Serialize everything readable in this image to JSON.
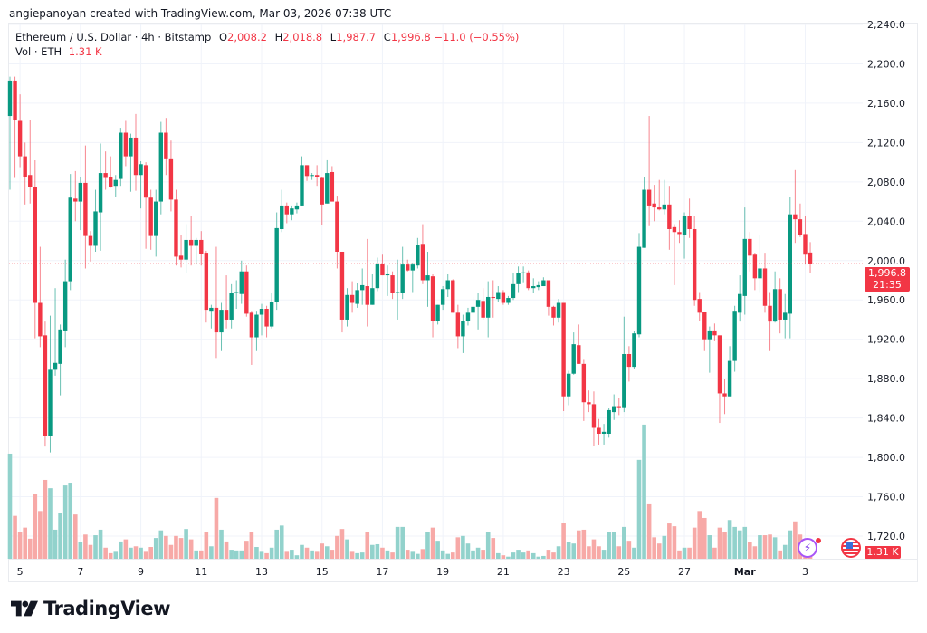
{
  "credit": "angiepanoyan created with TradingView.com, Mar 03, 2026 07:38 UTC",
  "legend": {
    "symbol": "Ethereum / U.S. Dollar · 4h · Bitstamp",
    "o_label": "O",
    "o": "2,008.2",
    "h_label": "H",
    "h": "2,018.8",
    "l_label": "L",
    "l": "1,987.7",
    "c_label": "C",
    "c": "1,996.8",
    "change": "−11.0 (−0.55%)",
    "vol_label": "Vol · ETH",
    "vol": "1.31 K"
  },
  "price_tag": {
    "price": "1,996.8",
    "countdown": "21:35"
  },
  "volume_tag": "1.31 K",
  "brand": "TradingView",
  "colors": {
    "up": "#089981",
    "down": "#F23645",
    "up_vol": "#92d2cc",
    "down_vol": "#f7a9a7",
    "grid": "#f0f3fa"
  },
  "chart_data": {
    "type": "candlestick",
    "title": "Ethereum / U.S. Dollar · 4h · Bitstamp",
    "ylim": [
      1720,
      2240
    ],
    "y_ticks": [
      "2,240.0",
      "2,200.0",
      "2,160.0",
      "2,120.0",
      "2,080.0",
      "2,040.0",
      "2,000.0",
      "1,960.0",
      "1,920.0",
      "1,880.0",
      "1,840.0",
      "1,800.0",
      "1,760.0",
      "1,720.0"
    ],
    "y_tick_values": [
      2240,
      2200,
      2160,
      2120,
      2080,
      2040,
      2000,
      1960,
      1920,
      1880,
      1840,
      1800,
      1760,
      1720
    ],
    "x_ticks": [
      {
        "label": "5",
        "bar": 2
      },
      {
        "label": "7",
        "bar": 14
      },
      {
        "label": "9",
        "bar": 26
      },
      {
        "label": "11",
        "bar": 38
      },
      {
        "label": "13",
        "bar": 50
      },
      {
        "label": "15",
        "bar": 62
      },
      {
        "label": "17",
        "bar": 74
      },
      {
        "label": "19",
        "bar": 86
      },
      {
        "label": "21",
        "bar": 98
      },
      {
        "label": "23",
        "bar": 110
      },
      {
        "label": "25",
        "bar": 122
      },
      {
        "label": "27",
        "bar": 134
      },
      {
        "label": "Mar",
        "bar": 146
      },
      {
        "label": "3",
        "bar": 158
      }
    ],
    "last_price": 1996.8,
    "volume_unit": "K",
    "ohlc": [
      [
        2147,
        2187,
        2072,
        2183
      ],
      [
        2183,
        2187,
        2084,
        2143
      ],
      [
        2142,
        2169,
        2095,
        2106
      ],
      [
        2106,
        2120,
        2057,
        2085
      ],
      [
        2087,
        2143,
        2058,
        2075
      ],
      [
        2075,
        2102,
        1921,
        1957
      ],
      [
        1957,
        2014,
        1912,
        1923
      ],
      [
        1924,
        1938,
        1811,
        1822
      ],
      [
        1822,
        1944,
        1805,
        1889
      ],
      [
        1889,
        1972,
        1883,
        1896
      ],
      [
        1895,
        1935,
        1863,
        1930
      ],
      [
        1929,
        2001,
        1912,
        1979
      ],
      [
        1979,
        2088,
        1970,
        2064
      ],
      [
        2063,
        2091,
        2040,
        2060
      ],
      [
        2060,
        2085,
        2031,
        2079
      ],
      [
        2079,
        2117,
        1992,
        2025
      ],
      [
        2025,
        2030,
        1999,
        2015
      ],
      [
        2015,
        2072,
        2009,
        2050
      ],
      [
        2049,
        2119,
        2010,
        2089
      ],
      [
        2089,
        2111,
        2072,
        2084
      ],
      [
        2085,
        2106,
        2074,
        2075
      ],
      [
        2076,
        2087,
        2065,
        2082
      ],
      [
        2083,
        2135,
        2076,
        2130
      ],
      [
        2130,
        2142,
        2096,
        2106
      ],
      [
        2106,
        2129,
        2070,
        2125
      ],
      [
        2125,
        2149,
        2071,
        2087
      ],
      [
        2087,
        2101,
        2053,
        2098
      ],
      [
        2097,
        2100,
        2012,
        2064
      ],
      [
        2064,
        2072,
        2011,
        2025
      ],
      [
        2025,
        2072,
        2004,
        2060
      ],
      [
        2060,
        2141,
        2047,
        2130
      ],
      [
        2130,
        2145,
        2087,
        2103
      ],
      [
        2103,
        2122,
        2050,
        2062
      ],
      [
        2062,
        2072,
        1995,
        2004
      ],
      [
        2005,
        2026,
        1993,
        2001
      ],
      [
        2001,
        2037,
        1987,
        2021
      ],
      [
        2021,
        2045,
        1995,
        2015
      ],
      [
        2015,
        2023,
        1996,
        2021
      ],
      [
        2021,
        2030,
        1995,
        2007
      ],
      [
        2008,
        2010,
        1937,
        1950
      ],
      [
        1949,
        1955,
        1931,
        1952
      ],
      [
        1952,
        2014,
        1901,
        1927
      ],
      [
        1927,
        1957,
        1908,
        1950
      ],
      [
        1950,
        1985,
        1931,
        1940
      ],
      [
        1940,
        1976,
        1931,
        1967
      ],
      [
        1967,
        1980,
        1951,
        1968
      ],
      [
        1966,
        2000,
        1956,
        1989
      ],
      [
        1989,
        1995,
        1943,
        1946
      ],
      [
        1947,
        1949,
        1894,
        1922
      ],
      [
        1922,
        1949,
        1908,
        1945
      ],
      [
        1945,
        1956,
        1924,
        1951
      ],
      [
        1951,
        1954,
        1922,
        1933
      ],
      [
        1933,
        1967,
        1931,
        1958
      ],
      [
        1958,
        2049,
        1950,
        2033
      ],
      [
        2032,
        2072,
        2029,
        2056
      ],
      [
        2056,
        2059,
        2038,
        2047
      ],
      [
        2047,
        2056,
        2041,
        2053
      ],
      [
        2052,
        2059,
        2048,
        2056
      ],
      [
        2056,
        2106,
        2056,
        2097
      ],
      [
        2097,
        2097,
        2081,
        2086
      ],
      [
        2086,
        2089,
        2082,
        2087
      ],
      [
        2087,
        2097,
        2076,
        2085
      ],
      [
        2084,
        2085,
        2036,
        2057
      ],
      [
        2058,
        2102,
        2058,
        2089
      ],
      [
        2090,
        2096,
        2060,
        2060
      ],
      [
        2060,
        2066,
        1992,
        2009
      ],
      [
        2009,
        2009,
        1927,
        1940
      ],
      [
        1940,
        1972,
        1933,
        1965
      ],
      [
        1965,
        1979,
        1947,
        1957
      ],
      [
        1956,
        1977,
        1952,
        1970
      ],
      [
        1970,
        1992,
        1955,
        1975
      ],
      [
        1974,
        2022,
        1933,
        1955
      ],
      [
        1955,
        1986,
        1955,
        1972
      ],
      [
        1972,
        2003,
        1969,
        1997
      ],
      [
        1997,
        2006,
        1985,
        1985
      ],
      [
        1985,
        1995,
        1964,
        1986
      ],
      [
        1985,
        1989,
        1961,
        1967
      ],
      [
        1967,
        2001,
        1940,
        1968
      ],
      [
        1967,
        2014,
        1961,
        1996
      ],
      [
        1996,
        2001,
        1989,
        1990
      ],
      [
        1990,
        1998,
        1968,
        1996
      ],
      [
        1995,
        2023,
        1992,
        2016
      ],
      [
        2017,
        2037,
        1976,
        1980
      ],
      [
        1980,
        2009,
        1953,
        1985
      ],
      [
        1984,
        1986,
        1922,
        1939
      ],
      [
        1939,
        1955,
        1935,
        1955
      ],
      [
        1955,
        1974,
        1950,
        1971
      ],
      [
        1971,
        1986,
        1963,
        1980
      ],
      [
        1980,
        1981,
        1947,
        1947
      ],
      [
        1947,
        1955,
        1911,
        1923
      ],
      [
        1923,
        1945,
        1906,
        1939
      ],
      [
        1939,
        1952,
        1934,
        1947
      ],
      [
        1947,
        1963,
        1946,
        1953
      ],
      [
        1953,
        1967,
        1930,
        1960
      ],
      [
        1959,
        1972,
        1940,
        1942
      ],
      [
        1942,
        1979,
        1922,
        1963
      ],
      [
        1963,
        1980,
        1942,
        1962
      ],
      [
        1961,
        1974,
        1958,
        1968
      ],
      [
        1968,
        1970,
        1955,
        1957
      ],
      [
        1957,
        1964,
        1955,
        1962
      ],
      [
        1962,
        1987,
        1960,
        1976
      ],
      [
        1976,
        1994,
        1968,
        1987
      ],
      [
        1987,
        1994,
        1978,
        1988
      ],
      [
        1988,
        1990,
        1970,
        1972
      ],
      [
        1972,
        1982,
        1967,
        1974
      ],
      [
        1973,
        1979,
        1970,
        1975
      ],
      [
        1974,
        1983,
        1974,
        1980
      ],
      [
        1980,
        1980,
        1944,
        1953
      ],
      [
        1953,
        1954,
        1934,
        1942
      ],
      [
        1942,
        1961,
        1937,
        1957
      ],
      [
        1957,
        1957,
        1847,
        1862
      ],
      [
        1862,
        1888,
        1853,
        1885
      ],
      [
        1885,
        1927,
        1884,
        1915
      ],
      [
        1914,
        1935,
        1895,
        1895
      ],
      [
        1895,
        1900,
        1837,
        1856
      ],
      [
        1856,
        1868,
        1846,
        1854
      ],
      [
        1854,
        1867,
        1812,
        1830
      ],
      [
        1830,
        1839,
        1813,
        1824
      ],
      [
        1824,
        1834,
        1813,
        1826
      ],
      [
        1824,
        1850,
        1820,
        1848
      ],
      [
        1846,
        1864,
        1838,
        1852
      ],
      [
        1852,
        1860,
        1843,
        1851
      ],
      [
        1851,
        1943,
        1846,
        1905
      ],
      [
        1905,
        1913,
        1877,
        1892
      ],
      [
        1892,
        1928,
        1890,
        1926
      ],
      [
        1925,
        2028,
        1922,
        2014
      ],
      [
        2013,
        2085,
        2013,
        2072
      ],
      [
        2072,
        2147,
        2035,
        2056
      ],
      [
        2058,
        2077,
        2040,
        2054
      ],
      [
        2054,
        2082,
        2051,
        2052
      ],
      [
        2052,
        2082,
        2047,
        2057
      ],
      [
        2057,
        2076,
        2011,
        2032
      ],
      [
        2034,
        2037,
        1975,
        2029
      ],
      [
        2029,
        2041,
        2018,
        2027
      ],
      [
        2026,
        2049,
        2002,
        2045
      ],
      [
        2045,
        2063,
        2023,
        2032
      ],
      [
        2032,
        2045,
        1954,
        1960
      ],
      [
        1961,
        1968,
        1939,
        1947
      ],
      [
        1948,
        1948,
        1908,
        1920
      ],
      [
        1920,
        1933,
        1886,
        1929
      ],
      [
        1929,
        1936,
        1918,
        1924
      ],
      [
        1924,
        1924,
        1835,
        1865
      ],
      [
        1865,
        1880,
        1844,
        1862
      ],
      [
        1862,
        1913,
        1862,
        1898
      ],
      [
        1898,
        1954,
        1887,
        1949
      ],
      [
        1947,
        1985,
        1938,
        1966
      ],
      [
        1964,
        2054,
        1945,
        2022
      ],
      [
        2022,
        2029,
        1989,
        2005
      ],
      [
        2006,
        2008,
        1970,
        1982
      ],
      [
        1982,
        2026,
        1968,
        1992
      ],
      [
        1992,
        2008,
        1947,
        1954
      ],
      [
        1954,
        1968,
        1908,
        1938
      ],
      [
        1938,
        1989,
        1937,
        1971
      ],
      [
        1971,
        1982,
        1926,
        1940
      ],
      [
        1940,
        1966,
        1921,
        1947
      ],
      [
        1946,
        2065,
        1921,
        2047
      ],
      [
        2047,
        2092,
        2018,
        2042
      ],
      [
        2042,
        2058,
        2024,
        2026
      ],
      [
        2027,
        2045,
        1996,
        2006
      ],
      [
        2008.2,
        2018.8,
        1987.7,
        1996.8
      ]
    ],
    "volume": [
      15.2,
      6.2,
      3.8,
      4.5,
      2.9,
      9.4,
      6.9,
      11.4,
      10.2,
      4.2,
      6.6,
      10.6,
      11.0,
      6.4,
      2.4,
      3.5,
      2.0,
      3.4,
      4.2,
      1.6,
      0.8,
      1.0,
      2.5,
      2.8,
      1.6,
      1.8,
      1.6,
      1.0,
      1.7,
      3.0,
      4.1,
      3.3,
      2.0,
      3.3,
      3.0,
      4.3,
      2.8,
      1.2,
      1.2,
      3.8,
      1.8,
      8.8,
      4.2,
      2.5,
      1.3,
      1.2,
      1.2,
      2.6,
      3.9,
      1.7,
      1.0,
      0.8,
      1.6,
      4.2,
      4.8,
      1.0,
      1.3,
      0.5,
      2.0,
      1.6,
      1.2,
      1.0,
      2.2,
      1.8,
      1.3,
      3.3,
      4.3,
      2.8,
      1.0,
      0.8,
      0.9,
      3.9,
      2.0,
      2.1,
      1.6,
      1.2,
      0.9,
      4.6,
      4.6,
      1.3,
      1.0,
      0.7,
      1.4,
      3.8,
      4.5,
      2.6,
      1.2,
      0.7,
      0.9,
      3.1,
      3.3,
      2.2,
      1.2,
      1.6,
      1.3,
      3.8,
      3.0,
      0.8,
      0.5,
      0.3,
      0.9,
      1.3,
      0.9,
      1.2,
      0.8,
      0.3,
      0.4,
      1.3,
      0.9,
      1.8,
      5.2,
      2.4,
      2.2,
      4.1,
      4.2,
      1.8,
      2.8,
      1.8,
      1.3,
      3.8,
      3.8,
      1.8,
      4.6,
      2.6,
      1.6,
      14.3,
      19.4,
      8.0,
      3.1,
      2.2,
      3.3,
      5.1,
      4.7,
      1.2,
      1.6,
      1.6,
      4.5,
      6.9,
      5.9,
      3.4,
      1.6,
      4.5,
      3.8,
      5.6,
      4.6,
      4.1,
      4.6,
      2.4,
      1.8,
      3.4,
      3.4,
      3.5,
      3.1,
      1.2,
      2.0,
      4.1,
      5.4,
      3.5,
      2.0,
      1.31
    ]
  }
}
